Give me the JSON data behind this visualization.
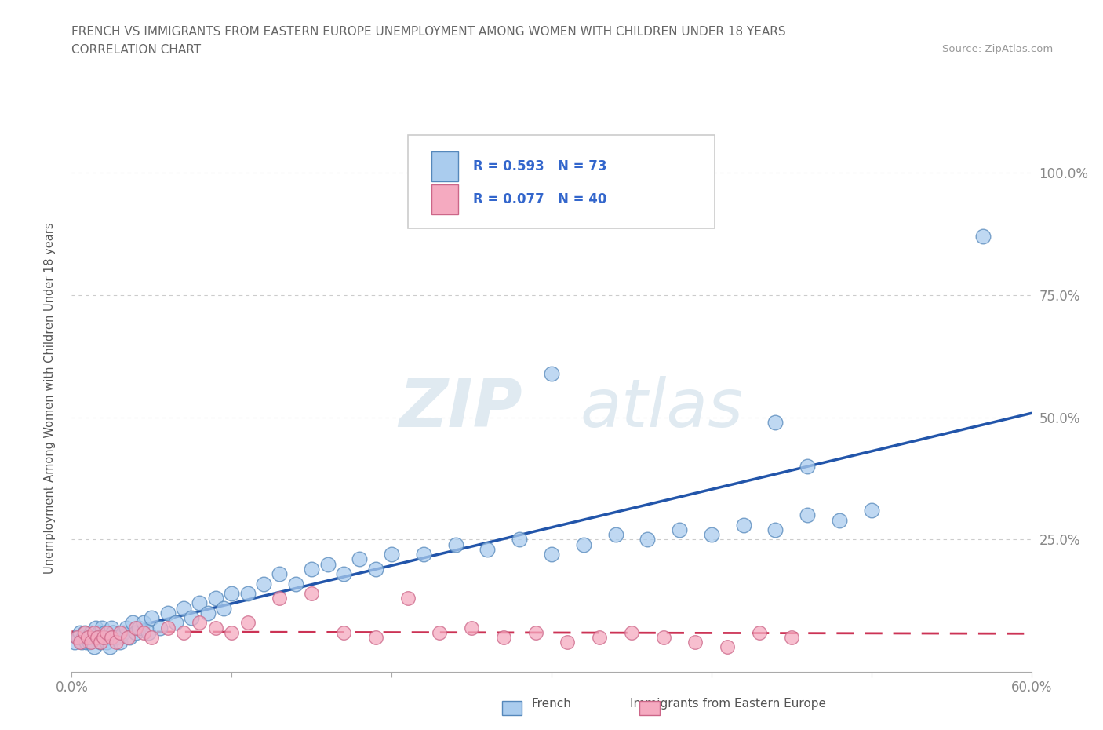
{
  "title_line1": "FRENCH VS IMMIGRANTS FROM EASTERN EUROPE UNEMPLOYMENT AMONG WOMEN WITH CHILDREN UNDER 18 YEARS",
  "title_line2": "CORRELATION CHART",
  "source_text": "Source: ZipAtlas.com",
  "ylabel": "Unemployment Among Women with Children Under 18 years",
  "x_min": 0.0,
  "x_max": 0.6,
  "y_min": -0.02,
  "y_max": 1.1,
  "x_ticks": [
    0.0,
    0.1,
    0.2,
    0.3,
    0.4,
    0.5,
    0.6
  ],
  "y_ticks": [
    0.0,
    0.25,
    0.5,
    0.75,
    1.0
  ],
  "y_tick_labels": [
    "",
    "25.0%",
    "50.0%",
    "75.0%",
    "100.0%"
  ],
  "grid_color": "#cccccc",
  "background_color": "#ffffff",
  "watermark_line1": "ZIP",
  "watermark_line2": "atlas",
  "french_color": "#aaccee",
  "french_edge_color": "#5588bb",
  "immigrant_color": "#f5aac0",
  "immigrant_edge_color": "#cc6688",
  "french_line_color": "#2255aa",
  "immigrant_line_color": "#cc3355",
  "french_R": 0.593,
  "french_N": 73,
  "immigrant_R": 0.077,
  "immigrant_N": 40,
  "legend_text_color": "#3366cc",
  "title_color": "#666666",
  "axis_label_color": "#555555",
  "tick_color": "#888888"
}
